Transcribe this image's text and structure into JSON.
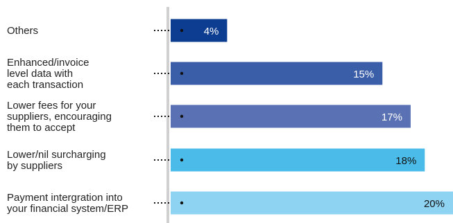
{
  "chart_data": {
    "type": "bar",
    "orientation": "horizontal",
    "categories": [
      [
        "Others"
      ],
      [
        "Enhanced/invoice",
        "level data with",
        "each transaction"
      ],
      [
        "Lower fees for your",
        "suppliers, encouraging",
        "them to accept"
      ],
      [
        "Lower/nil surcharging",
        "by suppliers"
      ],
      [
        "Payment intergration into",
        "your financial system/ERP"
      ]
    ],
    "values": [
      4,
      15,
      17,
      18,
      20
    ],
    "value_labels": [
      "4%",
      "15%",
      "17%",
      "18%",
      "20%"
    ],
    "bar_colors": [
      "#0d3d91",
      "#3a5ea8",
      "#5a72b3",
      "#4bbce9",
      "#8fd3f3"
    ],
    "label_colors": [
      "#ffffff",
      "#ffffff",
      "#ffffff",
      "#111111",
      "#111111"
    ],
    "xlim": [
      0,
      20
    ],
    "grid": false,
    "legend": "none"
  }
}
